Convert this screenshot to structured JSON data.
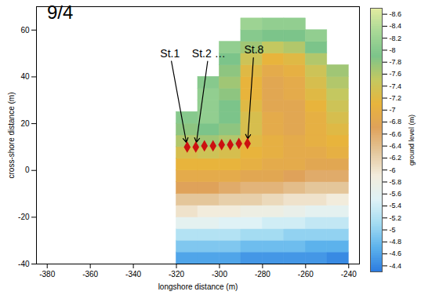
{
  "chart_data": {
    "type": "heatmap",
    "title": "9/4",
    "x_label": "longshore distance (m)",
    "y_label": "cross-shore distance (m)",
    "xlim": [
      -385,
      -235
    ],
    "xticks": [
      -380,
      -360,
      -340,
      -320,
      -300,
      -280,
      -260,
      -240
    ],
    "ylim": [
      -40,
      70
    ],
    "yticks": [
      -40,
      -20,
      0,
      20,
      40,
      60
    ],
    "grid": false,
    "cells": {
      "x": [
        -315,
        -305,
        -295,
        -285,
        -275,
        -265,
        -255,
        -245
      ],
      "y": [
        -37.5,
        -32.5,
        -27.5,
        -22.5,
        -17.5,
        -12.5,
        -7.5,
        -2.5,
        2.5,
        7.5,
        12.5,
        17.5,
        22.5,
        27.5,
        32.5,
        37.5,
        42.5,
        47.5,
        52.5,
        57.5,
        62.5
      ],
      "values": [
        [
          -4.6,
          -4.6,
          -4.6,
          -4.5,
          -4.5,
          -4.5,
          -4.5,
          -4.4
        ],
        [
          -4.9,
          -4.9,
          -4.9,
          -4.8,
          -4.8,
          -4.8,
          -4.7,
          -4.7
        ],
        [
          -5.2,
          -5.2,
          -5.2,
          -5.1,
          -5.1,
          -5.0,
          -5.0,
          -5.0
        ],
        [
          -5.6,
          -5.6,
          -5.5,
          -5.5,
          -5.4,
          -5.4,
          -5.3,
          -5.3
        ],
        [
          -6.0,
          -5.9,
          -5.9,
          -5.8,
          -5.8,
          -5.7,
          -5.6,
          -5.6
        ],
        [
          -6.3,
          -6.3,
          -6.2,
          -6.2,
          -6.1,
          -6.0,
          -6.0,
          -5.9
        ],
        [
          -6.7,
          -6.7,
          -6.6,
          -6.5,
          -6.5,
          -6.4,
          -6.3,
          -6.3
        ],
        [
          -6.9,
          -6.9,
          -6.9,
          -6.8,
          -6.8,
          -6.7,
          -6.6,
          -6.6
        ],
        [
          -7.1,
          -7.1,
          -7.1,
          -7.0,
          -6.9,
          -6.9,
          -6.8,
          -6.8
        ],
        [
          -7.3,
          -7.4,
          -7.3,
          -7.1,
          -7.0,
          -6.9,
          -6.9,
          -7.0
        ],
        [
          -7.6,
          -7.7,
          -7.6,
          -7.2,
          -7.0,
          -6.9,
          -7.0,
          -7.1
        ],
        [
          -7.8,
          -7.9,
          -7.8,
          -7.3,
          -6.9,
          -6.8,
          -7.0,
          -7.2
        ],
        [
          -8.0,
          -8.1,
          -7.9,
          -7.3,
          -6.9,
          -6.8,
          -7.0,
          -7.3
        ],
        [
          null,
          -8.1,
          -7.9,
          -7.2,
          -6.8,
          -6.8,
          -7.1,
          -7.4
        ],
        [
          null,
          -8.1,
          -7.8,
          -7.1,
          -6.8,
          -6.9,
          -7.2,
          -7.5
        ],
        [
          null,
          -8.0,
          -7.7,
          -7.1,
          -6.8,
          -6.9,
          -7.3,
          -7.6
        ],
        [
          null,
          null,
          -7.8,
          -7.2,
          -6.9,
          -7.0,
          -7.4,
          -7.7
        ],
        [
          null,
          null,
          -7.9,
          -7.4,
          -7.1,
          -7.2,
          -7.6,
          null
        ],
        [
          null,
          null,
          -8.1,
          -7.7,
          -7.5,
          -7.6,
          -7.9,
          null
        ],
        [
          null,
          null,
          null,
          -8.0,
          -7.9,
          -7.9,
          -8.1,
          null
        ],
        [
          null,
          null,
          null,
          -8.2,
          -8.1,
          -8.1,
          null,
          null
        ]
      ]
    },
    "colorbar": {
      "label": "ground level (m)",
      "range": [
        -8.7,
        -4.3
      ],
      "ticks": [
        -8.6,
        -8.4,
        -8.2,
        -8,
        -7.8,
        -7.6,
        -7.4,
        -7.2,
        -7,
        -6.8,
        -6.6,
        -6.4,
        -6.2,
        -6,
        -5.8,
        -5.6,
        -5.4,
        -5.2,
        -5,
        -4.8,
        -4.6,
        -4.4
      ]
    },
    "stations": {
      "x": [
        -315,
        -311,
        -307,
        -303,
        -299,
        -295,
        -291,
        -287
      ],
      "y": [
        10,
        10,
        10.5,
        10.5,
        11,
        11,
        11.5,
        11.5
      ],
      "labels": [
        "St.1",
        "St.2 …",
        null,
        null,
        null,
        null,
        null,
        "St.8"
      ],
      "color": "#cc1010",
      "marker": "diamond"
    }
  }
}
